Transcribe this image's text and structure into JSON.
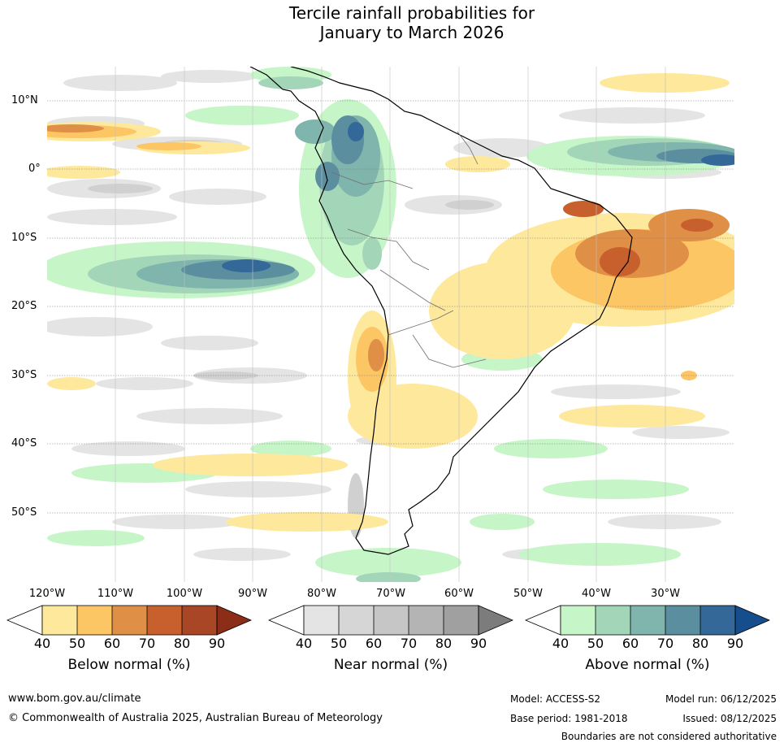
{
  "title": {
    "line1": "Tercile rainfall probabilities for",
    "line2": "January to March 2026"
  },
  "map": {
    "lat_labels": [
      "10°N",
      "0°",
      "10°S",
      "20°S",
      "30°S",
      "40°S",
      "50°S"
    ],
    "lon_labels": [
      "120°W",
      "110°W",
      "100°W",
      "90°W",
      "80°W",
      "70°W",
      "60°W",
      "50°W",
      "40°W",
      "30°W"
    ]
  },
  "legends": [
    {
      "title": "Below normal (%)",
      "ticks": [
        "40",
        "50",
        "60",
        "70",
        "80",
        "90"
      ],
      "colors": [
        "#fde89c",
        "#fcc664",
        "#e08f46",
        "#c8602e",
        "#a84626",
        "#8c2e17"
      ]
    },
    {
      "title": "Near normal (%)",
      "ticks": [
        "40",
        "50",
        "60",
        "70",
        "80",
        "90"
      ],
      "colors": [
        "#e4e4e4",
        "#d6d6d6",
        "#c6c6c6",
        "#b4b4b4",
        "#a0a0a0",
        "#7c7c7c"
      ]
    },
    {
      "title": "Above normal (%)",
      "ticks": [
        "40",
        "50",
        "60",
        "70",
        "80",
        "90"
      ],
      "colors": [
        "#c6f5c8",
        "#a3d6b8",
        "#7fb5ac",
        "#5b8fa0",
        "#336899",
        "#164d8c"
      ]
    }
  ],
  "footer": {
    "website": "www.bom.gov.au/climate",
    "copyright": "© Commonwealth of Australia 2025, Australian Bureau of Meteorology",
    "model": "Model: ACCESS-S2",
    "base_period": "Base period: 1981-2018",
    "model_run": "Model run: 06/12/2025",
    "issued": "Issued: 08/12/2025",
    "disclaimer": "Boundaries are not considered authoritative"
  }
}
